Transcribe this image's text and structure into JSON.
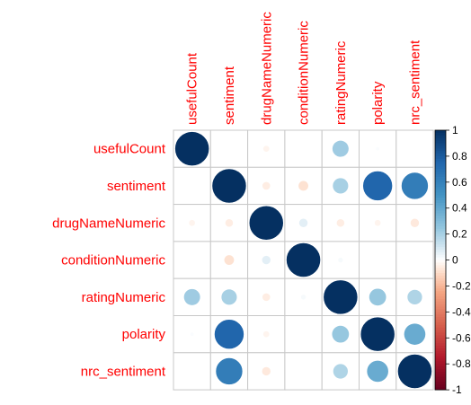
{
  "chart_data": {
    "type": "heatmap",
    "style": "corrplot-circle",
    "variables": [
      "usefulCount",
      "sentiment",
      "drugNameNumeric",
      "conditionNumeric",
      "ratingNumeric",
      "polarity",
      "nrc_sentiment"
    ],
    "matrix": [
      [
        1.0,
        0.0,
        -0.03,
        0.0,
        0.22,
        0.01,
        0.0
      ],
      [
        0.0,
        1.0,
        -0.05,
        -0.08,
        0.2,
        0.75,
        0.62
      ],
      [
        -0.03,
        -0.05,
        1.0,
        0.06,
        -0.05,
        -0.03,
        -0.06
      ],
      [
        0.0,
        -0.08,
        0.06,
        1.0,
        0.02,
        0.0,
        0.0
      ],
      [
        0.22,
        0.2,
        -0.05,
        0.02,
        1.0,
        0.24,
        0.18
      ],
      [
        0.01,
        0.75,
        -0.03,
        0.0,
        0.24,
        1.0,
        0.38
      ],
      [
        0.0,
        0.62,
        -0.06,
        0.0,
        0.18,
        0.38,
        1.0
      ]
    ],
    "colorbar": {
      "range": [
        -1,
        1
      ],
      "ticks": [
        "1",
        "0.8",
        "0.6",
        "0.4",
        "0.2",
        "0",
        "-0.2",
        "-0.4",
        "-0.6",
        "-0.8",
        "-1"
      ],
      "colors": {
        "neg_end": "#67001f",
        "mid": "#ffffff",
        "pos_end": "#053061"
      }
    },
    "label_color": "#ff0000",
    "grid": true
  }
}
